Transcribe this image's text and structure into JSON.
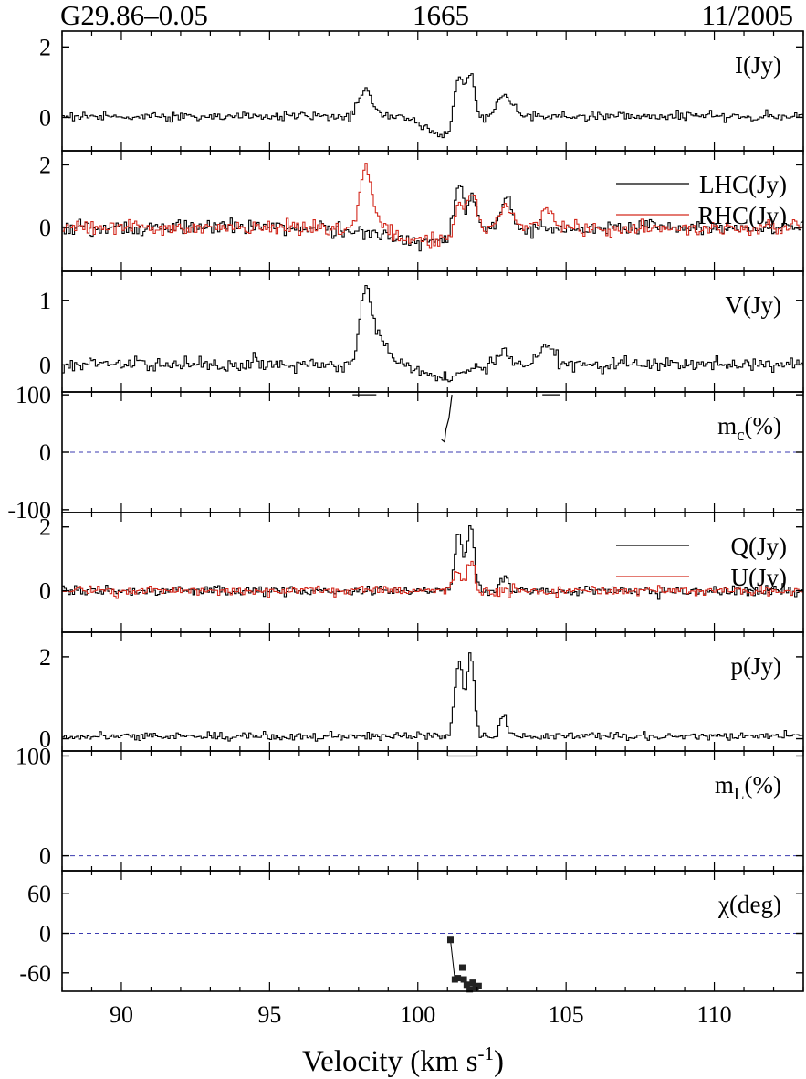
{
  "header": {
    "source": "G29.86–0.05",
    "frequency": "1665",
    "epoch": "11/2005"
  },
  "xlabel": {
    "main": "Velocity (km s",
    "sup": "-1",
    "close": ")"
  },
  "colors": {
    "black": "#000000",
    "red": "#d32a1e",
    "dash": "#3b3bb0"
  },
  "chart_data": {
    "type": "line",
    "xlim": [
      88,
      113
    ],
    "xticks": [
      90,
      95,
      100,
      105,
      110
    ],
    "panels": [
      {
        "key": "I",
        "label": "I(Jy)",
        "ylim": [
          -0.95,
          2.45
        ],
        "yticks": [
          0,
          2
        ],
        "yticklabels": [
          "0",
          "2"
        ],
        "noise": 0.06,
        "baseline": 0.03,
        "dips": [
          [
            100.8,
            0.55,
            -0.55
          ]
        ],
        "series": [
          {
            "color": "black",
            "peaks": [
              [
                98.2,
                0.22,
                0.75
              ],
              [
                101.35,
                0.16,
                1.45
              ],
              [
                101.75,
                0.14,
                1.25
              ],
              [
                102.9,
                0.25,
                0.6
              ]
            ]
          }
        ]
      },
      {
        "key": "LR",
        "label": "",
        "ylim": [
          -1.4,
          2.45
        ],
        "yticks": [
          0,
          2
        ],
        "yticklabels": [
          "0",
          "2"
        ],
        "noise": 0.11,
        "baseline": 0.0,
        "dips": [
          [
            100.0,
            1.3,
            -0.45
          ]
        ],
        "legend": [
          {
            "label": "LHC(Jy)",
            "color": "black"
          },
          {
            "label": "RHC(Jy)",
            "color": "red"
          }
        ],
        "series": [
          {
            "color": "black",
            "peaks": [
              [
                101.35,
                0.15,
                1.6
              ],
              [
                101.8,
                0.14,
                1.2
              ],
              [
                102.95,
                0.2,
                0.9
              ]
            ]
          },
          {
            "color": "red",
            "peaks": [
              [
                98.2,
                0.18,
                1.85
              ],
              [
                98.6,
                0.35,
                0.5
              ],
              [
                101.4,
                0.15,
                1.0
              ],
              [
                101.8,
                0.16,
                1.3
              ],
              [
                102.95,
                0.25,
                0.65
              ],
              [
                104.3,
                0.25,
                0.5
              ]
            ]
          }
        ]
      },
      {
        "key": "V",
        "label": "V(Jy)",
        "ylim": [
          -0.42,
          1.45
        ],
        "yticks": [
          0,
          1
        ],
        "yticklabels": [
          "0",
          "1"
        ],
        "noise": 0.05,
        "baseline": 0.0,
        "dips": [
          [
            100.8,
            0.7,
            -0.2
          ]
        ],
        "series": [
          {
            "color": "black",
            "peaks": [
              [
                98.2,
                0.2,
                1.05
              ],
              [
                98.7,
                0.35,
                0.35
              ],
              [
                102.8,
                0.2,
                0.22
              ],
              [
                104.3,
                0.25,
                0.3
              ]
            ]
          }
        ]
      },
      {
        "key": "mc",
        "label": "m",
        "label_sub": "c",
        "label_tail": "(%)",
        "ylim": [
          -105,
          105
        ],
        "yticks": [
          -100,
          0,
          100
        ],
        "yticklabels": [
          "-100",
          "0",
          "100"
        ],
        "zero_line": true,
        "segments": [
          {
            "color": "black",
            "points": [
              [
                97.8,
                100
              ],
              [
                98.6,
                100
              ]
            ]
          },
          {
            "color": "black",
            "points": [
              [
                104.2,
                100
              ],
              [
                104.8,
                100
              ]
            ]
          },
          {
            "color": "black",
            "points": [
              [
                100.8,
                22
              ],
              [
                100.9,
                18
              ],
              [
                100.95,
                40
              ],
              [
                101.05,
                60
              ],
              [
                101.1,
                80
              ],
              [
                101.15,
                100
              ]
            ]
          }
        ]
      },
      {
        "key": "QU",
        "label": "",
        "ylim": [
          -1.3,
          2.45
        ],
        "yticks": [
          0,
          2
        ],
        "yticklabels": [
          "0",
          "2"
        ],
        "noise": 0.08,
        "baseline": 0.0,
        "legend": [
          {
            "label": "Q(Jy)",
            "color": "black"
          },
          {
            "label": "U(Jy)",
            "color": "red"
          }
        ],
        "series": [
          {
            "color": "black",
            "peaks": [
              [
                101.35,
                0.14,
                1.7
              ],
              [
                101.75,
                0.12,
                2.05
              ],
              [
                102.9,
                0.12,
                0.4
              ]
            ]
          },
          {
            "color": "red",
            "peaks": [
              [
                101.3,
                0.15,
                0.6
              ],
              [
                101.75,
                0.12,
                0.9
              ]
            ]
          }
        ]
      },
      {
        "key": "p",
        "label": "p(Jy)",
        "ylim": [
          -0.3,
          2.6
        ],
        "yticks": [
          0,
          2
        ],
        "yticklabels": [
          "0",
          "2"
        ],
        "noise": 0.05,
        "baseline": 0.06,
        "series": [
          {
            "color": "black",
            "peaks": [
              [
                101.35,
                0.14,
                1.75
              ],
              [
                101.75,
                0.12,
                2.0
              ],
              [
                102.85,
                0.12,
                0.5
              ]
            ]
          }
        ]
      },
      {
        "key": "mL",
        "label": "m",
        "label_sub": "L",
        "label_tail": "(%)",
        "ylim": [
          -15,
          105
        ],
        "yticks": [
          0,
          100
        ],
        "yticklabels": [
          "0",
          "100"
        ],
        "zero_line": true,
        "segments": [
          {
            "color": "black",
            "points": [
              [
                101.0,
                100
              ],
              [
                102.0,
                100
              ]
            ]
          }
        ]
      },
      {
        "key": "chi",
        "label": "χ(deg)",
        "ylim": [
          -88,
          95
        ],
        "yticks": [
          -60,
          0,
          60
        ],
        "yticklabels": [
          "-60",
          "0",
          "60"
        ],
        "zero_line": true,
        "points": [
          [
            101.1,
            -10
          ],
          [
            101.25,
            -70
          ],
          [
            101.35,
            -68
          ],
          [
            101.5,
            -52
          ],
          [
            101.55,
            -70
          ],
          [
            101.65,
            -78
          ],
          [
            101.75,
            -85
          ],
          [
            101.85,
            -75
          ],
          [
            101.95,
            -82
          ],
          [
            102.05,
            -80
          ]
        ],
        "connect_first": true
      }
    ]
  }
}
